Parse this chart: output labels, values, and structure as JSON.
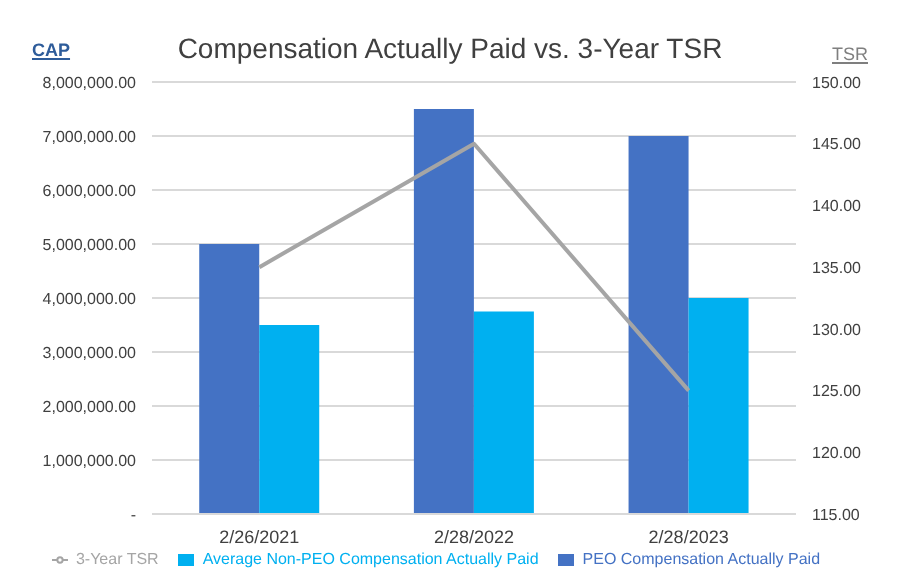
{
  "chart_data": {
    "type": "bar",
    "title": "Compensation Actually Paid vs. 3-Year TSR",
    "ylabel": "CAP",
    "y2label": "TSR",
    "categories": [
      "2/26/2021",
      "2/28/2022",
      "2/28/2023"
    ],
    "series": [
      {
        "name": "PEO Compensation Actually Paid",
        "color": "#4472c4",
        "values": [
          5000000,
          7500000,
          7000000
        ]
      },
      {
        "name": "Average Non-PEO Compensation Actually Paid",
        "color": "#00b0f0",
        "values": [
          3500000,
          3750000,
          4000000
        ]
      },
      {
        "name": "3-Year TSR",
        "type": "line",
        "axis": "y2",
        "color": "#a5a5a5",
        "values": [
          135,
          145,
          125
        ]
      }
    ],
    "ylim": [
      0,
      8000000
    ],
    "yticks": [
      {
        "value": 0,
        "label": "-"
      },
      {
        "value": 1000000,
        "label": "1,000,000.00"
      },
      {
        "value": 2000000,
        "label": "2,000,000.00"
      },
      {
        "value": 3000000,
        "label": "3,000,000.00"
      },
      {
        "value": 4000000,
        "label": "4,000,000.00"
      },
      {
        "value": 5000000,
        "label": "5,000,000.00"
      },
      {
        "value": 6000000,
        "label": "6,000,000.00"
      },
      {
        "value": 7000000,
        "label": "7,000,000.00"
      },
      {
        "value": 8000000,
        "label": "8,000,000.00"
      }
    ],
    "y2lim": [
      115,
      150
    ],
    "y2ticks": [
      {
        "value": 115,
        "label": "115.00"
      },
      {
        "value": 120,
        "label": "120.00"
      },
      {
        "value": 125,
        "label": "125.00"
      },
      {
        "value": 130,
        "label": "130.00"
      },
      {
        "value": 135,
        "label": "135.00"
      },
      {
        "value": 140,
        "label": "140.00"
      },
      {
        "value": 145,
        "label": "145.00"
      },
      {
        "value": 150,
        "label": "150.00"
      }
    ],
    "grid": "y",
    "legend": "bottom",
    "marker": "none",
    "line_style": "solid"
  }
}
